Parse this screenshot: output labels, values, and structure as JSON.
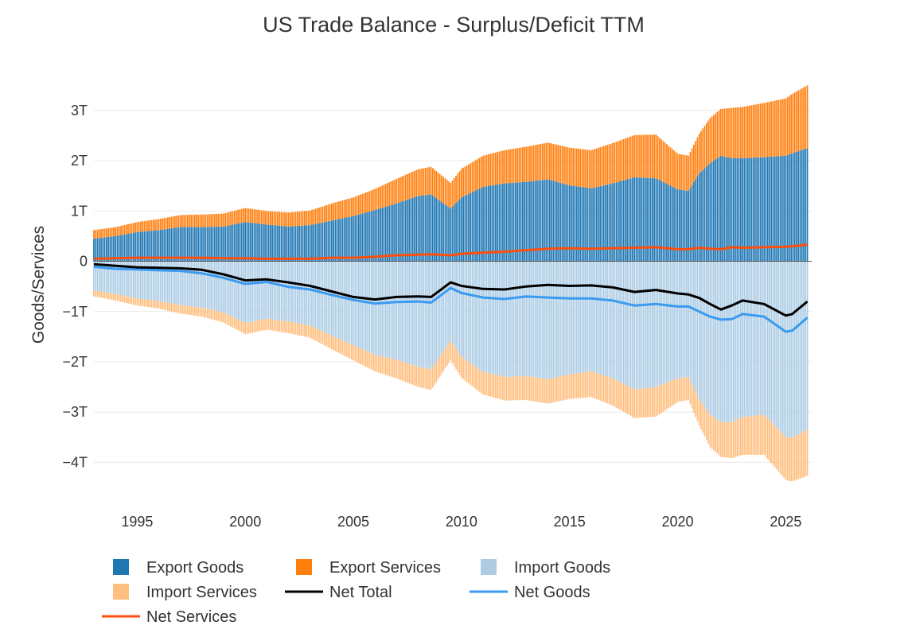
{
  "chart_data": {
    "type": "bar",
    "title": "US Trade Balance - Surplus/Deficit TTM",
    "xlabel": "",
    "ylabel": "Goods/Services",
    "xlim": [
      1993.0,
      2026.2
    ],
    "ylim": [
      -4.8,
      3.9
    ],
    "x_ticks": [
      {
        "value": 1995,
        "label": "1995"
      },
      {
        "value": 2000,
        "label": "2000"
      },
      {
        "value": 2005,
        "label": "2005"
      },
      {
        "value": 2010,
        "label": "2010"
      },
      {
        "value": 2015,
        "label": "2015"
      },
      {
        "value": 2020,
        "label": "2020"
      },
      {
        "value": 2025,
        "label": "2025"
      }
    ],
    "y_ticks": [
      {
        "value": 3,
        "label": "3T"
      },
      {
        "value": 2,
        "label": "2T"
      },
      {
        "value": 1,
        "label": "1T"
      },
      {
        "value": 0,
        "label": "0"
      },
      {
        "value": -1,
        "label": "−1T"
      },
      {
        "value": -2,
        "label": "−2T"
      },
      {
        "value": -3,
        "label": "−3T"
      },
      {
        "value": -4,
        "label": "−4T"
      }
    ],
    "units": "trillions USD",
    "grid": true,
    "legend_position": "bottom",
    "x": [
      1993.0,
      1994.0,
      1995.0,
      1996.0,
      1997.0,
      1998.0,
      1999.0,
      2000.0,
      2001.0,
      2002.0,
      2003.0,
      2004.0,
      2005.0,
      2006.0,
      2007.0,
      2008.0,
      2008.6,
      2009.5,
      2010.0,
      2011.0,
      2012.0,
      2013.0,
      2014.0,
      2015.0,
      2016.0,
      2017.0,
      2018.0,
      2019.0,
      2020.0,
      2020.5,
      2021.0,
      2021.5,
      2022.0,
      2022.5,
      2023.0,
      2024.0,
      2025.0,
      2025.3,
      2026.0
    ],
    "series": [
      {
        "name": "Export Goods",
        "kind": "bar",
        "color": "#1f77b4",
        "values": [
          0.45,
          0.5,
          0.58,
          0.62,
          0.68,
          0.68,
          0.69,
          0.78,
          0.73,
          0.69,
          0.72,
          0.81,
          0.9,
          1.02,
          1.15,
          1.3,
          1.33,
          1.05,
          1.27,
          1.48,
          1.55,
          1.58,
          1.63,
          1.51,
          1.45,
          1.55,
          1.67,
          1.65,
          1.43,
          1.4,
          1.75,
          1.95,
          2.1,
          2.05,
          2.05,
          2.07,
          2.1,
          2.15,
          2.25
        ]
      },
      {
        "name": "Export Services",
        "kind": "bar",
        "color": "#ff7f0e",
        "values": [
          0.17,
          0.18,
          0.2,
          0.22,
          0.24,
          0.25,
          0.26,
          0.28,
          0.27,
          0.28,
          0.29,
          0.34,
          0.37,
          0.42,
          0.49,
          0.53,
          0.55,
          0.51,
          0.57,
          0.62,
          0.66,
          0.7,
          0.73,
          0.75,
          0.76,
          0.8,
          0.84,
          0.87,
          0.71,
          0.7,
          0.79,
          0.9,
          0.93,
          1.0,
          1.02,
          1.08,
          1.14,
          1.18,
          1.25
        ]
      },
      {
        "name": "Import Goods",
        "kind": "bar",
        "color": "#aecde5",
        "values": [
          -0.58,
          -0.65,
          -0.74,
          -0.79,
          -0.87,
          -0.92,
          -1.02,
          -1.23,
          -1.14,
          -1.2,
          -1.28,
          -1.48,
          -1.67,
          -1.86,
          -1.96,
          -2.1,
          -2.15,
          -1.58,
          -1.9,
          -2.2,
          -2.3,
          -2.28,
          -2.35,
          -2.25,
          -2.19,
          -2.33,
          -2.55,
          -2.5,
          -2.33,
          -2.3,
          -2.75,
          -3.05,
          -3.2,
          -3.2,
          -3.1,
          -3.05,
          -3.5,
          -3.5,
          -3.35
        ]
      },
      {
        "name": "Import Services",
        "kind": "bar",
        "color": "#ffbf7f",
        "values": [
          -0.12,
          -0.13,
          -0.14,
          -0.15,
          -0.17,
          -0.18,
          -0.2,
          -0.22,
          -0.22,
          -0.23,
          -0.24,
          -0.27,
          -0.3,
          -0.33,
          -0.37,
          -0.4,
          -0.41,
          -0.39,
          -0.42,
          -0.45,
          -0.47,
          -0.48,
          -0.48,
          -0.49,
          -0.51,
          -0.54,
          -0.57,
          -0.59,
          -0.47,
          -0.46,
          -0.52,
          -0.65,
          -0.69,
          -0.72,
          -0.75,
          -0.8,
          -0.85,
          -0.88,
          -0.92
        ]
      },
      {
        "name": "Net Total",
        "kind": "line",
        "color": "#000000",
        "values": [
          -0.06,
          -0.09,
          -0.12,
          -0.13,
          -0.14,
          -0.17,
          -0.26,
          -0.38,
          -0.36,
          -0.42,
          -0.49,
          -0.6,
          -0.71,
          -0.76,
          -0.71,
          -0.7,
          -0.71,
          -0.42,
          -0.49,
          -0.55,
          -0.56,
          -0.5,
          -0.47,
          -0.49,
          -0.48,
          -0.52,
          -0.61,
          -0.57,
          -0.64,
          -0.66,
          -0.73,
          -0.85,
          -0.96,
          -0.88,
          -0.78,
          -0.85,
          -1.08,
          -1.05,
          -0.8
        ]
      },
      {
        "name": "Net Goods",
        "kind": "line",
        "color": "#3a9bf0",
        "values": [
          -0.11,
          -0.15,
          -0.16,
          -0.18,
          -0.19,
          -0.24,
          -0.33,
          -0.45,
          -0.41,
          -0.51,
          -0.56,
          -0.67,
          -0.77,
          -0.84,
          -0.81,
          -0.8,
          -0.82,
          -0.53,
          -0.63,
          -0.72,
          -0.75,
          -0.7,
          -0.72,
          -0.74,
          -0.74,
          -0.78,
          -0.88,
          -0.85,
          -0.9,
          -0.9,
          -1.0,
          -1.1,
          -1.16,
          -1.15,
          -1.05,
          -1.1,
          -1.4,
          -1.38,
          -1.12
        ]
      },
      {
        "name": "Net Services",
        "kind": "line",
        "color": "#ff4f0e",
        "values": [
          0.05,
          0.06,
          0.07,
          0.07,
          0.07,
          0.07,
          0.06,
          0.06,
          0.05,
          0.05,
          0.05,
          0.07,
          0.07,
          0.09,
          0.12,
          0.13,
          0.14,
          0.12,
          0.15,
          0.17,
          0.19,
          0.22,
          0.25,
          0.26,
          0.25,
          0.26,
          0.27,
          0.28,
          0.24,
          0.24,
          0.27,
          0.25,
          0.24,
          0.28,
          0.27,
          0.28,
          0.29,
          0.3,
          0.33
        ]
      }
    ],
    "legend": [
      {
        "name": "Export Goods",
        "symbol": "square",
        "color": "#1f77b4"
      },
      {
        "name": "Export Services",
        "symbol": "square",
        "color": "#ff7f0e"
      },
      {
        "name": "Import Goods",
        "symbol": "square",
        "color": "#aecde5"
      },
      {
        "name": "Import Services",
        "symbol": "square",
        "color": "#ffbf7f"
      },
      {
        "name": "Net Total",
        "symbol": "line",
        "color": "#000000"
      },
      {
        "name": "Net Goods",
        "symbol": "line",
        "color": "#3a9bf0"
      },
      {
        "name": "Net Services",
        "symbol": "line",
        "color": "#ff4f0e"
      }
    ]
  }
}
